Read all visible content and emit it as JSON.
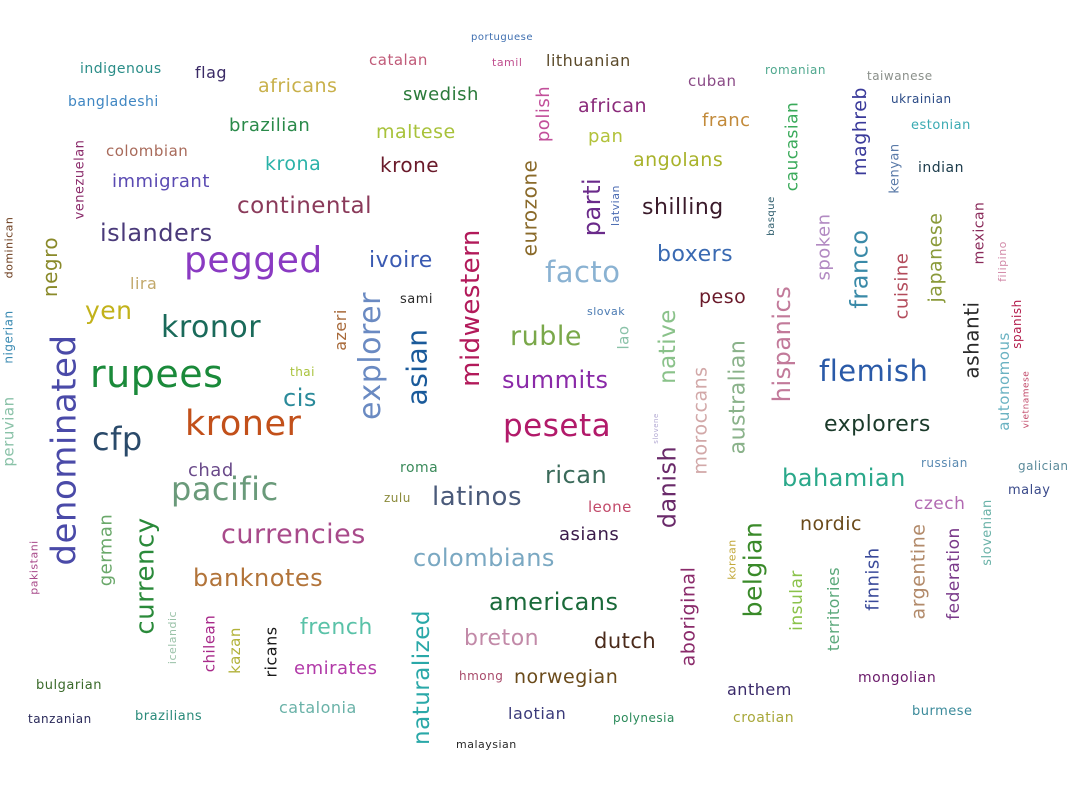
{
  "words": [
    {
      "text": "portuguese",
      "color": "#3f6fb0"
    },
    {
      "text": "catalan",
      "color": "#c05a78"
    },
    {
      "text": "tamil",
      "color": "#c04f8f"
    },
    {
      "text": "lithuanian",
      "color": "#5b4a2a"
    },
    {
      "text": "indigenous",
      "color": "#2a8d88"
    },
    {
      "text": "flag",
      "color": "#3a2a66"
    },
    {
      "text": "africans",
      "color": "#c8b04a"
    },
    {
      "text": "cuban",
      "color": "#8a4a86"
    },
    {
      "text": "romanian",
      "color": "#4fa88e"
    },
    {
      "text": "taiwanese",
      "color": "#8a8f8a"
    },
    {
      "text": "bangladeshi",
      "color": "#3f86c2"
    },
    {
      "text": "swedish",
      "color": "#2a7a3a"
    },
    {
      "text": "polish",
      "color": "#c24f9a"
    },
    {
      "text": "african",
      "color": "#8a2a7a"
    },
    {
      "text": "ukrainian",
      "color": "#2a4a86"
    },
    {
      "text": "brazilian",
      "color": "#2a8a4a"
    },
    {
      "text": "maltese",
      "color": "#a8c23a"
    },
    {
      "text": "pan",
      "color": "#b2c23a"
    },
    {
      "text": "franc",
      "color": "#c28a3a"
    },
    {
      "text": "caucasian",
      "color": "#3aaa5a"
    },
    {
      "text": "maghreb",
      "color": "#3a3a9a"
    },
    {
      "text": "estonian",
      "color": "#3aaab2"
    },
    {
      "text": "colombian",
      "color": "#a86a5a"
    },
    {
      "text": "krona",
      "color": "#2ab2a8"
    },
    {
      "text": "krone",
      "color": "#6a1a2a"
    },
    {
      "text": "angolans",
      "color": "#a8b22a"
    },
    {
      "text": "kenyan",
      "color": "#5a7aa8"
    },
    {
      "text": "indian",
      "color": "#1a3a4a"
    },
    {
      "text": "venezuelan",
      "color": "#8a2a6a"
    },
    {
      "text": "immigrant",
      "color": "#5a4ab2"
    },
    {
      "text": "eurozone",
      "color": "#8a6a2a"
    },
    {
      "text": "parti",
      "color": "#6a2a8a"
    },
    {
      "text": "latvian",
      "color": "#4a6ab2"
    },
    {
      "text": "shilling",
      "color": "#3a1a2a"
    },
    {
      "text": "basque",
      "color": "#2a5a6a"
    },
    {
      "text": "continental",
      "color": "#8a3a5a"
    },
    {
      "text": "islanders",
      "color": "#4a3a7a"
    },
    {
      "text": "dominican",
      "color": "#6a3a1a"
    },
    {
      "text": "negro",
      "color": "#8a8a2a"
    },
    {
      "text": "pegged",
      "color": "#8a3ac2"
    },
    {
      "text": "ivoire",
      "color": "#3a5ab2"
    },
    {
      "text": "midwestern",
      "color": "#b21a5a"
    },
    {
      "text": "facto",
      "color": "#8ab2d2"
    },
    {
      "text": "boxers",
      "color": "#3a6ab2"
    },
    {
      "text": "spoken",
      "color": "#b28ac2"
    },
    {
      "text": "franco",
      "color": "#3a8aa8"
    },
    {
      "text": "cuisine",
      "color": "#b24a5a"
    },
    {
      "text": "japanese",
      "color": "#8a9a3a"
    },
    {
      "text": "mexican",
      "color": "#8a2a5a"
    },
    {
      "text": "filipino",
      "color": "#d28aa8"
    },
    {
      "text": "lira",
      "color": "#c2a86a"
    },
    {
      "text": "yen",
      "color": "#c2b21a"
    },
    {
      "text": "sami",
      "color": "#2a2a2a"
    },
    {
      "text": "peso",
      "color": "#6a1a2a"
    },
    {
      "text": "slovak",
      "color": "#4a7ab2"
    },
    {
      "text": "nigerian",
      "color": "#3a8ab2"
    },
    {
      "text": "kronor",
      "color": "#1a6a5a"
    },
    {
      "text": "azeri",
      "color": "#a86a3a"
    },
    {
      "text": "explorer",
      "color": "#6a8ac2"
    },
    {
      "text": "asian",
      "color": "#1a5a9a"
    },
    {
      "text": "ruble",
      "color": "#7aa84a"
    },
    {
      "text": "lao",
      "color": "#8ac2a8"
    },
    {
      "text": "native",
      "color": "#8ac28a"
    },
    {
      "text": "hispanics",
      "color": "#c27a9a"
    },
    {
      "text": "ashanti",
      "color": "#2a2a2a"
    },
    {
      "text": "spanish",
      "color": "#b21a4a"
    },
    {
      "text": "denominated",
      "color": "#4a4aa8"
    },
    {
      "text": "rupees",
      "color": "#1a8a3a"
    },
    {
      "text": "thai",
      "color": "#a8c23a"
    },
    {
      "text": "summits",
      "color": "#8a2aa8"
    },
    {
      "text": "moroccans",
      "color": "#d2a8a8"
    },
    {
      "text": "australian",
      "color": "#8ab28a"
    },
    {
      "text": "flemish",
      "color": "#2a5aa8"
    },
    {
      "text": "autonomous",
      "color": "#6ab2c2"
    },
    {
      "text": "vietnamese",
      "color": "#c24a6a"
    },
    {
      "text": "cis",
      "color": "#2a8a9a"
    },
    {
      "text": "cfp",
      "color": "#2a4a6a"
    },
    {
      "text": "kroner",
      "color": "#c2501a"
    },
    {
      "text": "peseta",
      "color": "#b21a6a"
    },
    {
      "text": "slovene",
      "color": "#b2a8d2"
    },
    {
      "text": "explorers",
      "color": "#1a3a2a"
    },
    {
      "text": "peruvian",
      "color": "#8ac2a8"
    },
    {
      "text": "chad",
      "color": "#6a4a8a"
    },
    {
      "text": "roma",
      "color": "#3a8a5a"
    },
    {
      "text": "rican",
      "color": "#3a6a5a"
    },
    {
      "text": "danish",
      "color": "#6a2a6a"
    },
    {
      "text": "bahamian",
      "color": "#2aa88a"
    },
    {
      "text": "russian",
      "color": "#5a8ab2"
    },
    {
      "text": "galician",
      "color": "#5a8a9a"
    },
    {
      "text": "pacific",
      "color": "#6a9a7a"
    },
    {
      "text": "zulu",
      "color": "#8a8a3a"
    },
    {
      "text": "latinos",
      "color": "#4a5a7a"
    },
    {
      "text": "leone",
      "color": "#c24a6a"
    },
    {
      "text": "czech",
      "color": "#b26ab2"
    },
    {
      "text": "malay",
      "color": "#3a4a8a"
    },
    {
      "text": "nordic",
      "color": "#6a4a1a"
    },
    {
      "text": "german",
      "color": "#6aa86a"
    },
    {
      "text": "currency",
      "color": "#2a8a3a"
    },
    {
      "text": "currencies",
      "color": "#a84a8a"
    },
    {
      "text": "asians",
      "color": "#3a1a4a"
    },
    {
      "text": "slovenian",
      "color": "#6ab2a8"
    },
    {
      "text": "pakistani",
      "color": "#a84a8a"
    },
    {
      "text": "banknotes",
      "color": "#b2743a"
    },
    {
      "text": "colombians",
      "color": "#7aa8c2"
    },
    {
      "text": "belgian",
      "color": "#3a8a2a"
    },
    {
      "text": "korean",
      "color": "#c2a83a"
    },
    {
      "text": "finnish",
      "color": "#3a4a9a"
    },
    {
      "text": "argentine",
      "color": "#b28a6a"
    },
    {
      "text": "federation",
      "color": "#7a3a8a"
    },
    {
      "text": "americans",
      "color": "#1a6a3a"
    },
    {
      "text": "aboriginal",
      "color": "#8a2a6a"
    },
    {
      "text": "insular",
      "color": "#8ac24a"
    },
    {
      "text": "territories",
      "color": "#5aa87a"
    },
    {
      "text": "icelandic",
      "color": "#9ac2a8"
    },
    {
      "text": "chilean",
      "color": "#a82a8a"
    },
    {
      "text": "kazan",
      "color": "#b2b23a"
    },
    {
      "text": "ricans",
      "color": "#1a1a1a"
    },
    {
      "text": "french",
      "color": "#5ac2a8"
    },
    {
      "text": "naturalized",
      "color": "#2aa8a8"
    },
    {
      "text": "breton",
      "color": "#c28aa8"
    },
    {
      "text": "dutch",
      "color": "#4a2a1a"
    },
    {
      "text": "emirates",
      "color": "#b23aa8"
    },
    {
      "text": "hmong",
      "color": "#a84a6a"
    },
    {
      "text": "norwegian",
      "color": "#6a4a1a"
    },
    {
      "text": "mongolian",
      "color": "#6a1a6a"
    },
    {
      "text": "bulgarian",
      "color": "#3a6a2a"
    },
    {
      "text": "anthem",
      "color": "#3a2a6a"
    },
    {
      "text": "tanzanian",
      "color": "#2a2a5a"
    },
    {
      "text": "brazilians",
      "color": "#2a8a7a"
    },
    {
      "text": "catalonia",
      "color": "#6ab2a8"
    },
    {
      "text": "laotian",
      "color": "#3a3a7a"
    },
    {
      "text": "polynesia",
      "color": "#2a8a5a"
    },
    {
      "text": "croatian",
      "color": "#a8a83a"
    },
    {
      "text": "burmese",
      "color": "#3a8a9a"
    },
    {
      "text": "malaysian",
      "color": "#2a2a2a"
    }
  ]
}
